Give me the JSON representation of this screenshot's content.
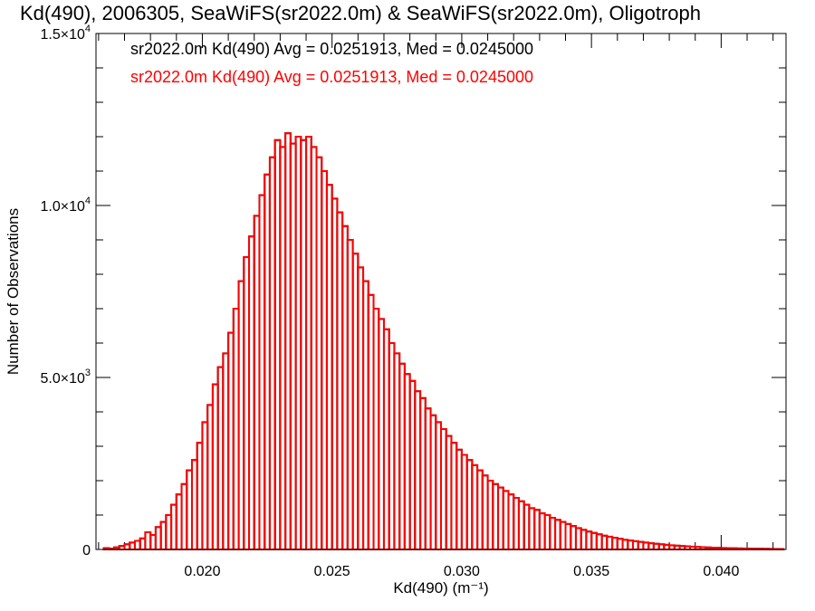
{
  "chart_data": {
    "type": "histogram",
    "title": "Kd(490), 2006305, SeaWiFS(sr2022.0m) & SeaWiFS(sr2022.0m), Oligotroph",
    "xlabel": "Kd(490) (m⁻¹)",
    "ylabel": "Number of Observations",
    "xlim": [
      0.0159,
      0.0425
    ],
    "ylim": [
      0,
      15000
    ],
    "x_ticks": [
      {
        "value": 0.02,
        "label": "0.020"
      },
      {
        "value": 0.025,
        "label": "0.025"
      },
      {
        "value": 0.03,
        "label": "0.030"
      },
      {
        "value": 0.035,
        "label": "0.035"
      },
      {
        "value": 0.04,
        "label": "0.040"
      }
    ],
    "y_ticks": [
      {
        "value": 0,
        "mant": "0",
        "exp": ""
      },
      {
        "value": 5000,
        "mant": "5.0×10",
        "exp": "3"
      },
      {
        "value": 10000,
        "mant": "1.0×10",
        "exp": "4"
      },
      {
        "value": 15000,
        "mant": "1.5×10",
        "exp": "4"
      }
    ],
    "y_minor_step": 1000,
    "x_minor_step": 0.001,
    "bin_width": 0.0002,
    "series": [
      {
        "name": "sr2022.0m Kd(490) Avg = 0.0251913, Med = 0.0245000",
        "color": "#000000",
        "x": [
          0.016,
          0.0162,
          0.0164,
          0.0166,
          0.0168,
          0.017,
          0.0172,
          0.0174,
          0.0176,
          0.0178,
          0.018,
          0.0182,
          0.0184,
          0.0186,
          0.0188,
          0.019,
          0.0192,
          0.0194,
          0.0196,
          0.0198,
          0.02,
          0.0202,
          0.0204,
          0.0206,
          0.0208,
          0.021,
          0.0212,
          0.0214,
          0.0216,
          0.0218,
          0.022,
          0.0222,
          0.0224,
          0.0226,
          0.0228,
          0.023,
          0.0232,
          0.0234,
          0.0236,
          0.0238,
          0.024,
          0.0242,
          0.0244,
          0.0246,
          0.0248,
          0.025,
          0.0252,
          0.0254,
          0.0256,
          0.0258,
          0.026,
          0.0262,
          0.0264,
          0.0266,
          0.0268,
          0.027,
          0.0272,
          0.0274,
          0.0276,
          0.0278,
          0.028,
          0.0282,
          0.0284,
          0.0286,
          0.0288,
          0.029,
          0.0292,
          0.0294,
          0.0296,
          0.0298,
          0.03,
          0.0302,
          0.0304,
          0.0306,
          0.0308,
          0.031,
          0.0312,
          0.0314,
          0.0316,
          0.0318,
          0.032,
          0.0322,
          0.0324,
          0.0326,
          0.0328,
          0.033,
          0.0332,
          0.0334,
          0.0336,
          0.0338,
          0.034,
          0.0342,
          0.0344,
          0.0346,
          0.0348,
          0.035,
          0.0352,
          0.0354,
          0.0356,
          0.0358,
          0.036,
          0.0362,
          0.0364,
          0.0366,
          0.0368,
          0.037,
          0.0372,
          0.0374,
          0.0376,
          0.0378,
          0.038,
          0.0382,
          0.0384,
          0.0386,
          0.0388,
          0.039,
          0.0392,
          0.0394,
          0.0396,
          0.0398,
          0.04,
          0.0402,
          0.0404,
          0.0406,
          0.0408,
          0.041,
          0.0412,
          0.0414,
          0.0416,
          0.0418,
          0.042,
          0.0422
        ],
        "values": [
          0,
          40,
          20,
          60,
          100,
          150,
          200,
          250,
          320,
          500,
          420,
          650,
          800,
          1000,
          1300,
          1600,
          1900,
          2300,
          2600,
          3100,
          3700,
          4200,
          4800,
          5300,
          5700,
          6300,
          7000,
          7800,
          8500,
          9100,
          9700,
          10300,
          10900,
          11400,
          11900,
          11700,
          12100,
          11800,
          12000,
          11900,
          12000,
          11700,
          11400,
          11000,
          10600,
          10200,
          9800,
          9400,
          9000,
          8600,
          8200,
          7800,
          7400,
          7000,
          6700,
          6400,
          6000,
          5700,
          5400,
          5100,
          4900,
          4600,
          4400,
          4100,
          3900,
          3700,
          3500,
          3300,
          3100,
          2900,
          2750,
          2600,
          2450,
          2300,
          2150,
          2000,
          1900,
          1800,
          1700,
          1600,
          1500,
          1400,
          1300,
          1200,
          1150,
          1050,
          1000,
          920,
          860,
          800,
          740,
          680,
          620,
          570,
          520,
          480,
          440,
          400,
          370,
          340,
          310,
          280,
          260,
          240,
          220,
          200,
          180,
          165,
          150,
          135,
          120,
          110,
          100,
          90,
          80,
          72,
          65,
          58,
          52,
          47,
          42,
          38,
          34,
          30,
          27,
          24,
          22,
          20,
          18,
          16,
          14,
          12
        ]
      },
      {
        "name": "sr2022.0m Kd(490) Avg = 0.0251913, Med = 0.0245000",
        "color": "#ff0000",
        "x": [
          0.016,
          0.0162,
          0.0164,
          0.0166,
          0.0168,
          0.017,
          0.0172,
          0.0174,
          0.0176,
          0.0178,
          0.018,
          0.0182,
          0.0184,
          0.0186,
          0.0188,
          0.019,
          0.0192,
          0.0194,
          0.0196,
          0.0198,
          0.02,
          0.0202,
          0.0204,
          0.0206,
          0.0208,
          0.021,
          0.0212,
          0.0214,
          0.0216,
          0.0218,
          0.022,
          0.0222,
          0.0224,
          0.0226,
          0.0228,
          0.023,
          0.0232,
          0.0234,
          0.0236,
          0.0238,
          0.024,
          0.0242,
          0.0244,
          0.0246,
          0.0248,
          0.025,
          0.0252,
          0.0254,
          0.0256,
          0.0258,
          0.026,
          0.0262,
          0.0264,
          0.0266,
          0.0268,
          0.027,
          0.0272,
          0.0274,
          0.0276,
          0.0278,
          0.028,
          0.0282,
          0.0284,
          0.0286,
          0.0288,
          0.029,
          0.0292,
          0.0294,
          0.0296,
          0.0298,
          0.03,
          0.0302,
          0.0304,
          0.0306,
          0.0308,
          0.031,
          0.0312,
          0.0314,
          0.0316,
          0.0318,
          0.032,
          0.0322,
          0.0324,
          0.0326,
          0.0328,
          0.033,
          0.0332,
          0.0334,
          0.0336,
          0.0338,
          0.034,
          0.0342,
          0.0344,
          0.0346,
          0.0348,
          0.035,
          0.0352,
          0.0354,
          0.0356,
          0.0358,
          0.036,
          0.0362,
          0.0364,
          0.0366,
          0.0368,
          0.037,
          0.0372,
          0.0374,
          0.0376,
          0.0378,
          0.038,
          0.0382,
          0.0384,
          0.0386,
          0.0388,
          0.039,
          0.0392,
          0.0394,
          0.0396,
          0.0398,
          0.04,
          0.0402,
          0.0404,
          0.0406,
          0.0408,
          0.041,
          0.0412,
          0.0414,
          0.0416,
          0.0418,
          0.042,
          0.0422
        ],
        "values": [
          0,
          40,
          20,
          60,
          100,
          150,
          200,
          250,
          320,
          500,
          420,
          650,
          800,
          1000,
          1300,
          1600,
          1900,
          2300,
          2600,
          3100,
          3700,
          4200,
          4800,
          5300,
          5700,
          6300,
          7000,
          7800,
          8500,
          9100,
          9700,
          10300,
          10900,
          11400,
          11900,
          11700,
          12100,
          11800,
          12000,
          11900,
          12000,
          11700,
          11400,
          11000,
          10600,
          10200,
          9800,
          9400,
          9000,
          8600,
          8200,
          7800,
          7400,
          7000,
          6700,
          6400,
          6000,
          5700,
          5400,
          5100,
          4900,
          4600,
          4400,
          4100,
          3900,
          3700,
          3500,
          3300,
          3100,
          2900,
          2750,
          2600,
          2450,
          2300,
          2150,
          2000,
          1900,
          1800,
          1700,
          1600,
          1500,
          1400,
          1300,
          1200,
          1150,
          1050,
          1000,
          920,
          860,
          800,
          740,
          680,
          620,
          570,
          520,
          480,
          440,
          400,
          370,
          340,
          310,
          280,
          260,
          240,
          220,
          200,
          180,
          165,
          150,
          135,
          120,
          110,
          100,
          90,
          80,
          72,
          65,
          58,
          52,
          47,
          42,
          38,
          34,
          30,
          27,
          24,
          22,
          20,
          18,
          16,
          14,
          12
        ]
      }
    ]
  }
}
